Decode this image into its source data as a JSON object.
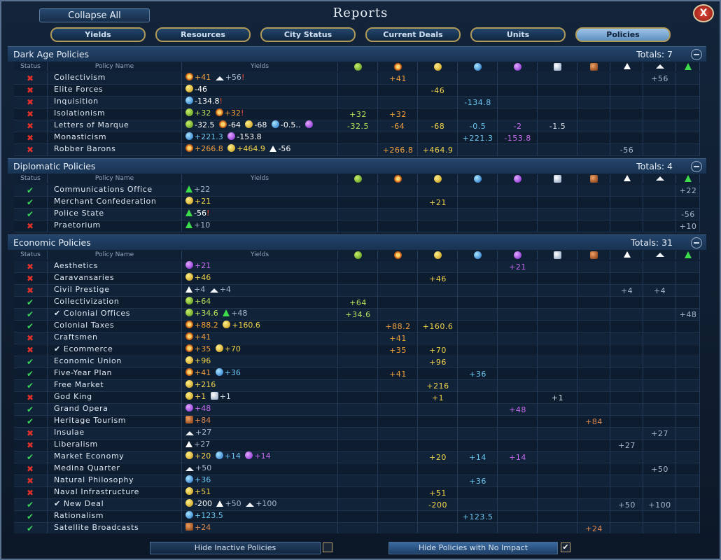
{
  "window": {
    "title": "Reports",
    "collapse_all": "Collapse All",
    "close_label": "X"
  },
  "tabs": [
    {
      "label": "Yields",
      "active": false
    },
    {
      "label": "Resources",
      "active": false
    },
    {
      "label": "City Status",
      "active": false
    },
    {
      "label": "Current Deals",
      "active": false
    },
    {
      "label": "Units",
      "active": false
    },
    {
      "label": "Policies",
      "active": true
    }
  ],
  "columns": {
    "status": "Status",
    "policy_name": "Policy Name",
    "yields": "Yields",
    "yield_icons": [
      "food-icon",
      "production-icon",
      "gold-icon",
      "science-icon",
      "faith-icon",
      "culture-icon",
      "tourism-icon",
      "happiness-icon",
      "amenities-icon",
      "growth-icon"
    ]
  },
  "sections": [
    {
      "title": "Dark Age Policies",
      "totals": "Totals: 7",
      "rows": [
        {
          "status": "x",
          "name": "Collectivism",
          "yields": [
            [
              "prod",
              "+41"
            ],
            [
              "amen",
              "+56",
              "!"
            ]
          ],
          "vals": {
            "prod": "+41",
            "amen": "+56"
          }
        },
        {
          "status": "x",
          "name": "Elite Forces",
          "yields": [
            [
              "gold",
              "-46"
            ]
          ],
          "vals": {
            "gold": "-46"
          }
        },
        {
          "status": "x",
          "name": "Inquisition",
          "yields": [
            [
              "sci",
              "-134.8",
              "!"
            ]
          ],
          "vals": {
            "sci": "-134.8"
          }
        },
        {
          "status": "x",
          "name": "Isolationism",
          "yields": [
            [
              "food",
              "+32"
            ],
            [
              "prod",
              "+32",
              "!"
            ]
          ],
          "vals": {
            "food": "+32",
            "prod": "+32"
          }
        },
        {
          "status": "x",
          "name": "Letters of Marque",
          "yields": [
            [
              "food",
              "-32.5"
            ],
            [
              "prod",
              "-64"
            ],
            [
              "gold",
              "-68"
            ],
            [
              "sci",
              "-0.5.."
            ],
            [
              "faith",
              ""
            ]
          ],
          "vals": {
            "food": "-32.5",
            "prod": "-64",
            "gold": "-68",
            "sci": "-0.5",
            "faith": "-2",
            "cult": "-1.5"
          }
        },
        {
          "status": "x",
          "name": "Monasticism",
          "yields": [
            [
              "sci",
              "+221.3"
            ],
            [
              "faith",
              "-153.8"
            ]
          ],
          "vals": {
            "sci": "+221.3",
            "faith": "-153.8"
          }
        },
        {
          "status": "x",
          "name": "Robber Barons",
          "yields": [
            [
              "prod",
              "+266.8"
            ],
            [
              "gold",
              "+464.9"
            ],
            [
              "happy",
              "-56"
            ]
          ],
          "vals": {
            "prod": "+266.8",
            "gold": "+464.9",
            "happy": "-56"
          }
        }
      ]
    },
    {
      "title": "Diplomatic Policies",
      "totals": "Totals: 4",
      "rows": [
        {
          "status": "ok",
          "name": "Communications Office",
          "yields": [
            [
              "growth",
              "+22"
            ]
          ],
          "vals": {
            "growth": "+22"
          }
        },
        {
          "status": "ok",
          "name": "Merchant Confederation",
          "yields": [
            [
              "gold",
              "+21"
            ]
          ],
          "vals": {
            "gold": "+21"
          }
        },
        {
          "status": "ok",
          "name": "Police State",
          "yields": [
            [
              "growth",
              "-56",
              "!"
            ]
          ],
          "vals": {
            "growth": "-56"
          }
        },
        {
          "status": "x",
          "name": "Praetorium",
          "yields": [
            [
              "growth",
              "+10"
            ]
          ],
          "vals": {
            "growth": "+10"
          }
        }
      ]
    },
    {
      "title": "Economic Policies",
      "totals": "Totals: 31",
      "rows": [
        {
          "status": "x",
          "name": "Aesthetics",
          "yields": [
            [
              "faith",
              "+21"
            ]
          ],
          "vals": {
            "faith": "+21"
          }
        },
        {
          "status": "x",
          "name": "Caravansaries",
          "yields": [
            [
              "gold",
              "+46"
            ]
          ],
          "vals": {
            "gold": "+46"
          }
        },
        {
          "status": "x",
          "name": "Civil Prestige",
          "yields": [
            [
              "happy",
              "+4"
            ],
            [
              "amen",
              "+4"
            ]
          ],
          "vals": {
            "happy": "+4",
            "amen": "+4"
          }
        },
        {
          "status": "ok",
          "name": "Collectivization",
          "yields": [
            [
              "food",
              "+64"
            ]
          ],
          "vals": {
            "food": "+64"
          }
        },
        {
          "status": "ok",
          "name": "✔ Colonial Offices",
          "yields": [
            [
              "food",
              "+34.6"
            ],
            [
              "growth",
              "+48"
            ]
          ],
          "vals": {
            "food": "+34.6",
            "growth": "+48"
          }
        },
        {
          "status": "ok",
          "name": "Colonial Taxes",
          "yields": [
            [
              "prod",
              "+88.2"
            ],
            [
              "gold",
              "+160.6"
            ]
          ],
          "vals": {
            "prod": "+88.2",
            "gold": "+160.6"
          }
        },
        {
          "status": "x",
          "name": "Craftsmen",
          "yields": [
            [
              "prod",
              "+41"
            ]
          ],
          "vals": {
            "prod": "+41"
          }
        },
        {
          "status": "x",
          "name": "✔ Ecommerce",
          "yields": [
            [
              "prod",
              "+35"
            ],
            [
              "gold",
              "+70"
            ]
          ],
          "vals": {
            "prod": "+35",
            "gold": "+70"
          }
        },
        {
          "status": "ok",
          "name": "Economic Union",
          "yields": [
            [
              "gold",
              "+96"
            ]
          ],
          "vals": {
            "gold": "+96"
          }
        },
        {
          "status": "ok",
          "name": "Five-Year Plan",
          "yields": [
            [
              "prod",
              "+41"
            ],
            [
              "sci",
              "+36"
            ]
          ],
          "vals": {
            "prod": "+41",
            "sci": "+36"
          }
        },
        {
          "status": "ok",
          "name": "Free Market",
          "yields": [
            [
              "gold",
              "+216"
            ]
          ],
          "vals": {
            "gold": "+216"
          }
        },
        {
          "status": "x",
          "name": "God King",
          "yields": [
            [
              "gold",
              "+1"
            ],
            [
              "cult",
              "+1"
            ]
          ],
          "vals": {
            "gold": "+1",
            "cult": "+1"
          }
        },
        {
          "status": "ok",
          "name": "Grand Opera",
          "yields": [
            [
              "faith",
              "+48"
            ]
          ],
          "vals": {
            "faith": "+48"
          }
        },
        {
          "status": "ok",
          "name": "Heritage Tourism",
          "yields": [
            [
              "tour",
              "+84"
            ]
          ],
          "vals": {
            "tour": "+84"
          }
        },
        {
          "status": "x",
          "name": "Insulae",
          "yields": [
            [
              "amen",
              "+27"
            ]
          ],
          "vals": {
            "amen": "+27"
          }
        },
        {
          "status": "x",
          "name": "Liberalism",
          "yields": [
            [
              "happy",
              "+27"
            ]
          ],
          "vals": {
            "happy": "+27"
          }
        },
        {
          "status": "ok",
          "name": "Market Economy",
          "yields": [
            [
              "gold",
              "+20"
            ],
            [
              "sci",
              "+14"
            ],
            [
              "faith",
              "+14"
            ]
          ],
          "vals": {
            "gold": "+20",
            "sci": "+14",
            "faith": "+14"
          }
        },
        {
          "status": "x",
          "name": "Medina Quarter",
          "yields": [
            [
              "amen",
              "+50"
            ]
          ],
          "vals": {
            "amen": "+50"
          }
        },
        {
          "status": "x",
          "name": "Natural Philosophy",
          "yields": [
            [
              "sci",
              "+36"
            ]
          ],
          "vals": {
            "sci": "+36"
          }
        },
        {
          "status": "x",
          "name": "Naval Infrastructure",
          "yields": [
            [
              "gold",
              "+51"
            ]
          ],
          "vals": {
            "gold": "+51"
          }
        },
        {
          "status": "ok",
          "name": "✔ New Deal",
          "yields": [
            [
              "gold",
              "-200"
            ],
            [
              "happy",
              "+50"
            ],
            [
              "amen",
              "+100"
            ]
          ],
          "vals": {
            "gold": "-200",
            "happy": "+50",
            "amen": "+100"
          }
        },
        {
          "status": "ok",
          "name": "Rationalism",
          "yields": [
            [
              "sci",
              "+123.5"
            ]
          ],
          "vals": {
            "sci": "+123.5"
          }
        },
        {
          "status": "ok",
          "name": "Satellite Broadcasts",
          "yields": [
            [
              "tour",
              "+24"
            ]
          ],
          "vals": {
            "tour": "+24"
          }
        }
      ]
    }
  ],
  "footer": {
    "hide_inactive": "Hide Inactive Policies",
    "hide_inactive_checked": false,
    "hide_no_impact": "Hide Policies with No Impact",
    "hide_no_impact_checked": true,
    "check_mark": "✔"
  }
}
